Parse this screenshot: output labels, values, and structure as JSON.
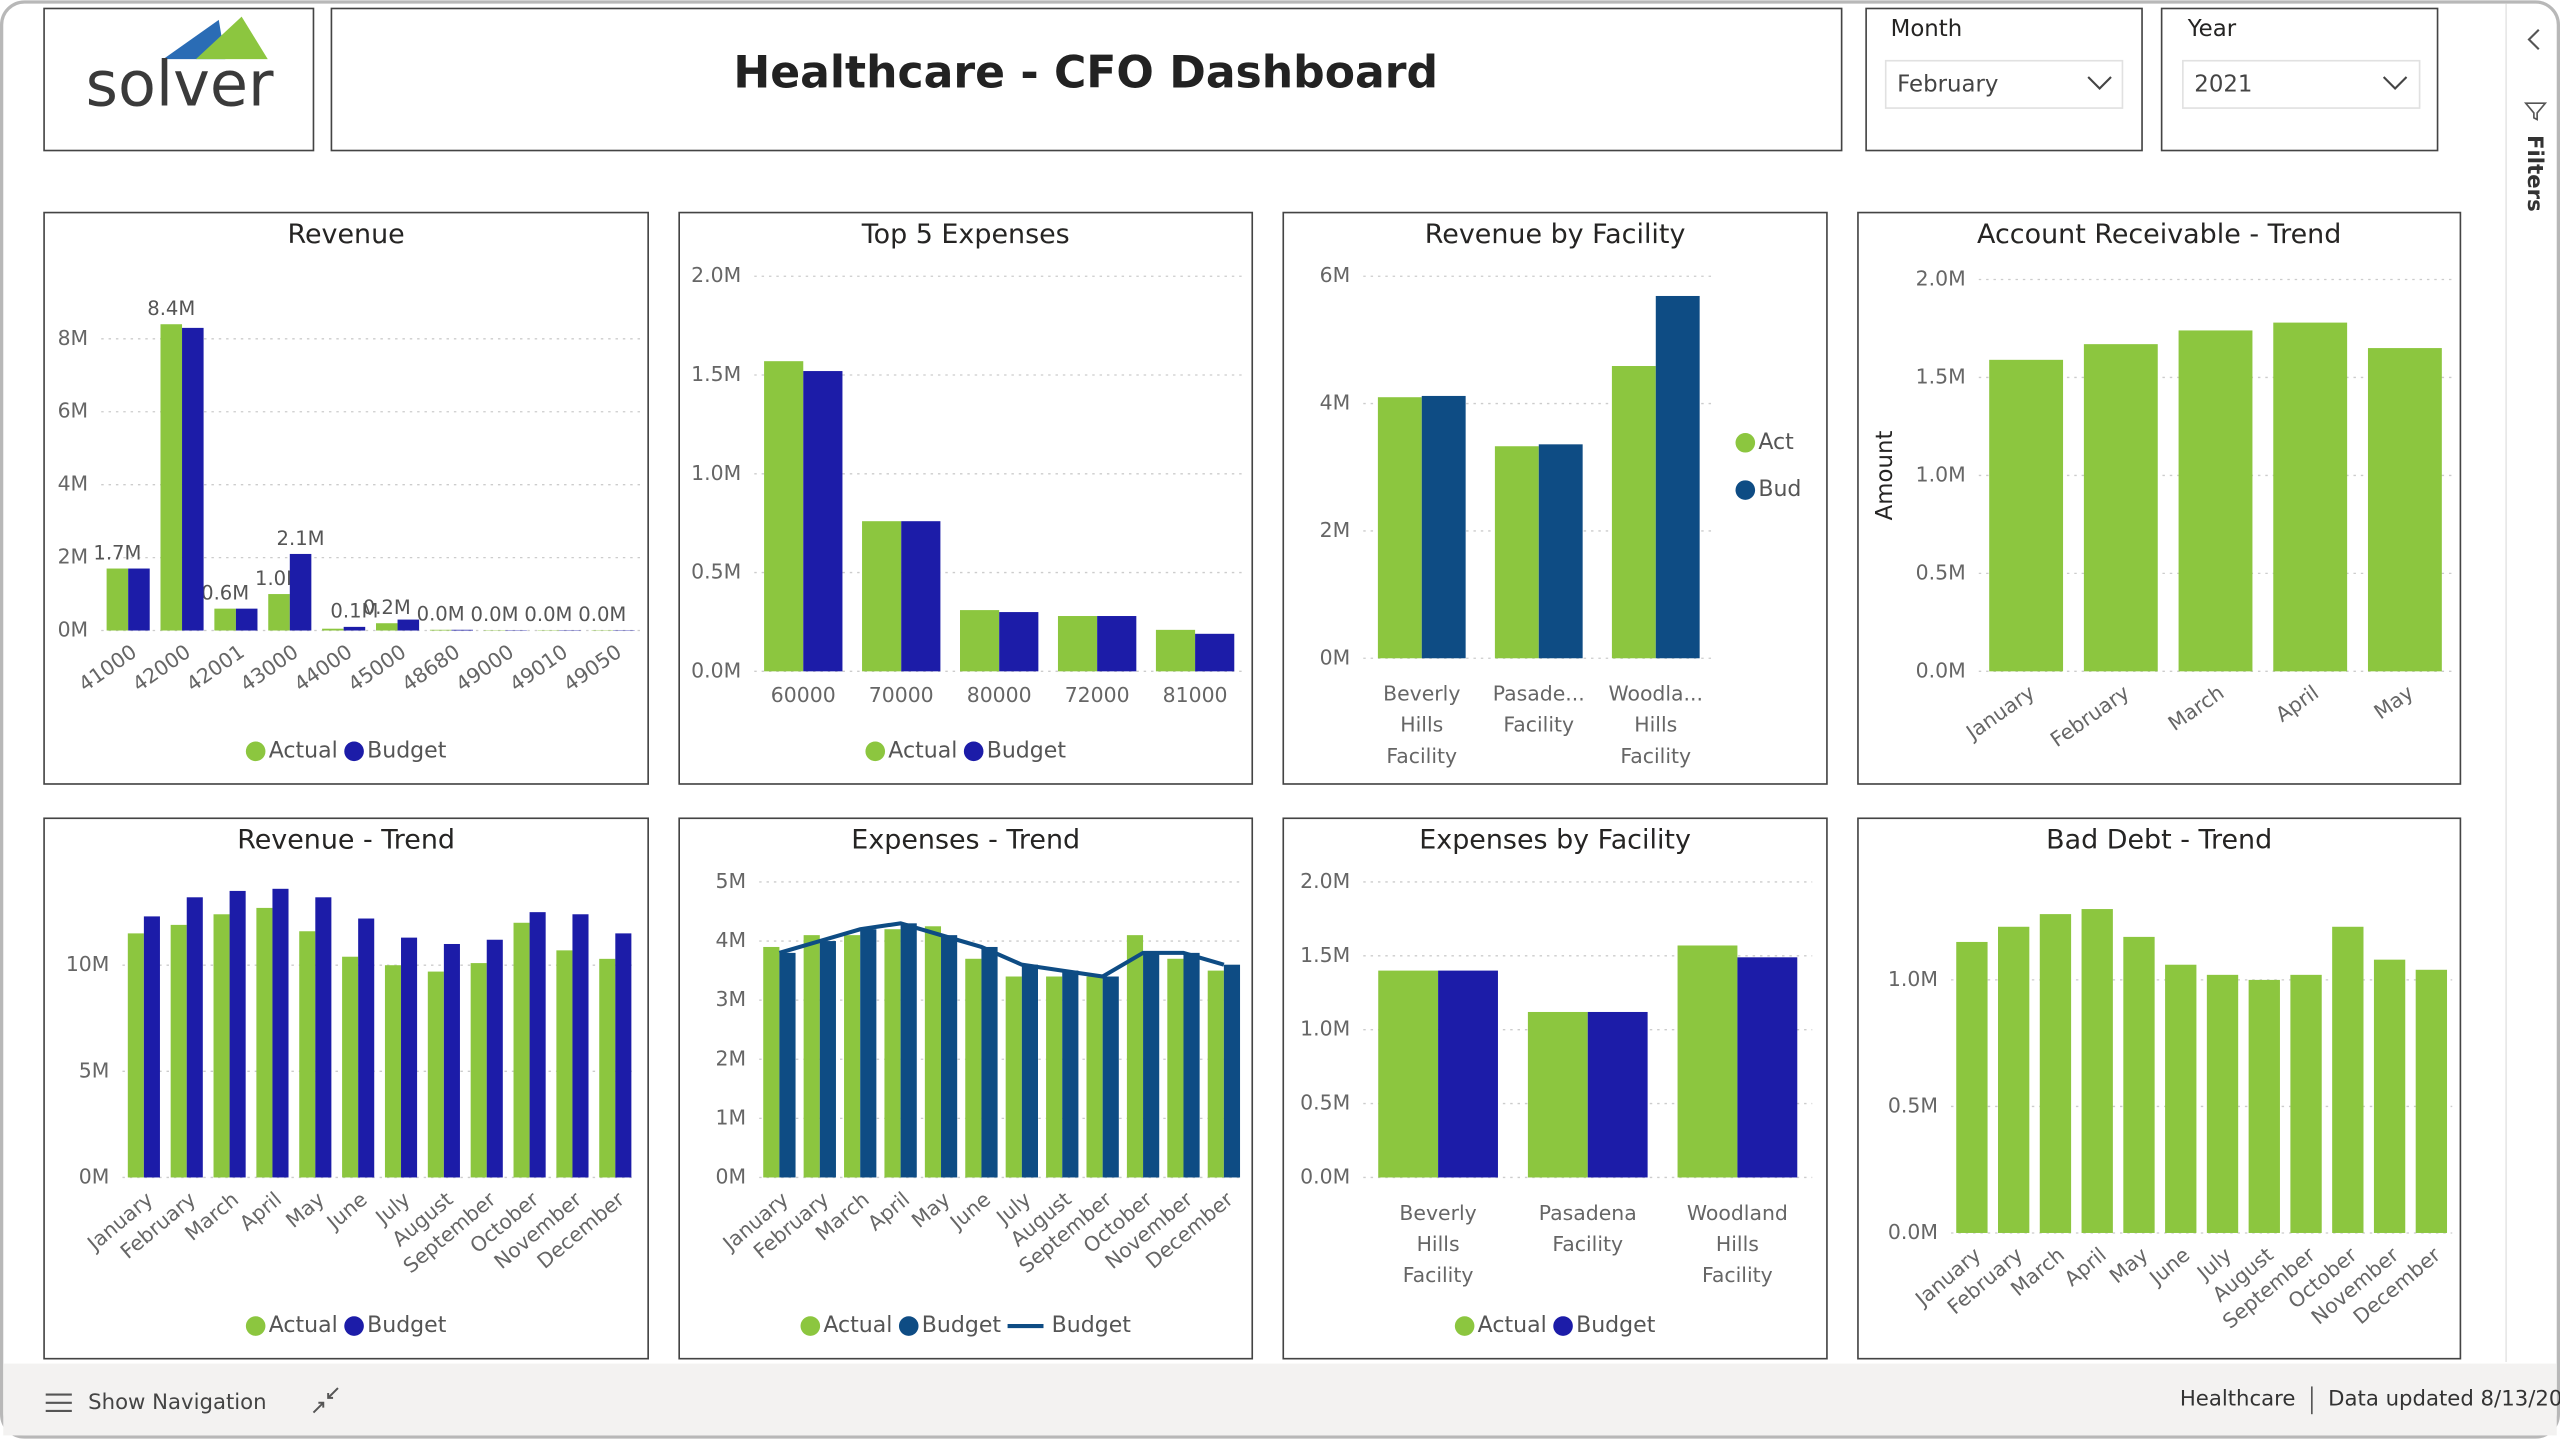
{
  "header": {
    "logo": "solver",
    "title": "Healthcare - CFO Dashboard"
  },
  "filters": [
    {
      "label": "Month",
      "value": "February"
    },
    {
      "label": "Year",
      "value": "2021"
    }
  ],
  "filters_pane": "Filters",
  "footer": {
    "navigation": "Show Navigation",
    "report": "Healthcare",
    "updated": "Data updated 8/13/20"
  },
  "chart_data": [
    {
      "type": "bar",
      "title": "Revenue",
      "categories": [
        "41000",
        "42000",
        "42001",
        "43000",
        "44000",
        "45000",
        "48680",
        "49000",
        "49010",
        "49050"
      ],
      "series": [
        {
          "name": "Actual",
          "color": "#8cc63f",
          "values": [
            1.7,
            8.4,
            0.6,
            1.0,
            0.05,
            0.2,
            0.02,
            0.01,
            0.01,
            0.01
          ],
          "value_labels": [
            "1.7M",
            "8.4M",
            "0.6M",
            "1.0M",
            null,
            "0.2M",
            "0.0M",
            "0.0M",
            "0.0M",
            "0.0M"
          ]
        },
        {
          "name": "Budget",
          "color": "#1c1ca8",
          "values": [
            1.7,
            8.3,
            0.6,
            2.1,
            0.1,
            0.3,
            0.02,
            0.01,
            0.01,
            0.01
          ],
          "value_labels": [
            null,
            null,
            null,
            "2.1M",
            "0.1M",
            null,
            null,
            null,
            null,
            null
          ]
        }
      ],
      "ylim": [
        0,
        9
      ],
      "yticks": [
        {
          "value": 0,
          "label": "0M"
        },
        {
          "value": 2,
          "label": "2M"
        },
        {
          "value": 4,
          "label": "4M"
        },
        {
          "value": 6,
          "label": "6M"
        },
        {
          "value": 8,
          "label": "8M"
        }
      ],
      "grid": true,
      "legend": "bottom"
    },
    {
      "type": "bar",
      "title": "Top 5 Expenses",
      "categories": [
        "60000",
        "70000",
        "80000",
        "72000",
        "81000"
      ],
      "series": [
        {
          "name": "Actual",
          "color": "#8cc63f",
          "values": [
            1.57,
            0.76,
            0.31,
            0.28,
            0.21
          ]
        },
        {
          "name": "Budget",
          "color": "#1c1ca8",
          "values": [
            1.52,
            0.76,
            0.3,
            0.28,
            0.19
          ]
        }
      ],
      "ylim": [
        0,
        2.0
      ],
      "yticks": [
        {
          "value": 0,
          "label": "0.0M"
        },
        {
          "value": 0.5,
          "label": "0.5M"
        },
        {
          "value": 1.0,
          "label": "1.0M"
        },
        {
          "value": 1.5,
          "label": "1.5M"
        },
        {
          "value": 2.0,
          "label": "2.0M"
        }
      ],
      "grid": true,
      "legend": "bottom"
    },
    {
      "type": "bar",
      "title": "Revenue by Facility",
      "categories": [
        "Beverly Hills Facility",
        "Pasade... Facility",
        "Woodla... Hills Facility"
      ],
      "series": [
        {
          "name": "Act",
          "color": "#8cc63f",
          "values": [
            4.1,
            3.33,
            4.59
          ]
        },
        {
          "name": "Bud",
          "color": "#0e4c84",
          "values": [
            4.12,
            3.36,
            5.69
          ]
        }
      ],
      "ylim": [
        0,
        6
      ],
      "yticks": [
        {
          "value": 0,
          "label": "0M"
        },
        {
          "value": 2,
          "label": "2M"
        },
        {
          "value": 4,
          "label": "4M"
        },
        {
          "value": 6,
          "label": "6M"
        }
      ],
      "grid": true,
      "legend": "right"
    },
    {
      "type": "bar",
      "title": "Account Receivable - Trend",
      "ylabel": "Amount",
      "categories": [
        "January",
        "February",
        "March",
        "April",
        "May"
      ],
      "values": [
        1.59,
        1.67,
        1.74,
        1.78,
        1.65
      ],
      "color": "#8cc63f",
      "ylim": [
        0,
        2.0
      ],
      "yticks": [
        {
          "value": 0,
          "label": "0.0M"
        },
        {
          "value": 0.5,
          "label": "0.5M"
        },
        {
          "value": 1.0,
          "label": "1.0M"
        },
        {
          "value": 1.5,
          "label": "1.5M"
        },
        {
          "value": 2.0,
          "label": "2.0M"
        }
      ],
      "grid": true
    },
    {
      "type": "bar",
      "title": "Revenue - Trend",
      "categories": [
        "January",
        "February",
        "March",
        "April",
        "May",
        "June",
        "July",
        "August",
        "September",
        "October",
        "November",
        "December"
      ],
      "series": [
        {
          "name": "Actual",
          "color": "#8cc63f",
          "values": [
            11.5,
            11.9,
            12.4,
            12.7,
            11.6,
            10.4,
            10.0,
            9.7,
            10.1,
            12.0,
            10.7,
            10.3
          ]
        },
        {
          "name": "Budget",
          "color": "#1c1ca8",
          "values": [
            12.3,
            13.2,
            13.5,
            13.6,
            13.2,
            12.2,
            11.3,
            11.0,
            11.2,
            12.5,
            12.4,
            11.5
          ]
        }
      ],
      "ylim": [
        0,
        14
      ],
      "yticks": [
        {
          "value": 0,
          "label": "0M"
        },
        {
          "value": 5,
          "label": "5M"
        },
        {
          "value": 10,
          "label": "10M"
        }
      ],
      "grid": true,
      "legend": "bottom"
    },
    {
      "type": "bar",
      "title": "Expenses - Trend",
      "categories": [
        "January",
        "February",
        "March",
        "April",
        "May",
        "June",
        "July",
        "August",
        "September",
        "October",
        "November",
        "December"
      ],
      "series": [
        {
          "name": "Actual",
          "type": "bar",
          "color": "#8cc63f",
          "values": [
            3.9,
            4.1,
            4.1,
            4.2,
            4.25,
            3.7,
            3.4,
            3.4,
            3.4,
            4.1,
            3.7,
            3.5
          ]
        },
        {
          "name": "Budget",
          "type": "bar",
          "color": "#0e4c84",
          "values": [
            3.8,
            4.0,
            4.2,
            4.3,
            4.1,
            3.9,
            3.6,
            3.5,
            3.4,
            3.8,
            3.8,
            3.6
          ]
        },
        {
          "name": "Budget",
          "type": "line",
          "color": "#0e4c84",
          "values": [
            3.8,
            4.0,
            4.2,
            4.3,
            4.1,
            3.9,
            3.6,
            3.5,
            3.4,
            3.8,
            3.8,
            3.6
          ]
        }
      ],
      "ylim": [
        0,
        5
      ],
      "yticks": [
        {
          "value": 0,
          "label": "0M"
        },
        {
          "value": 1,
          "label": "1M"
        },
        {
          "value": 2,
          "label": "2M"
        },
        {
          "value": 3,
          "label": "3M"
        },
        {
          "value": 4,
          "label": "4M"
        },
        {
          "value": 5,
          "label": "5M"
        }
      ],
      "grid": true,
      "legend": "bottom"
    },
    {
      "type": "bar",
      "title": "Expenses by Facility",
      "categories": [
        "Beverly Hills Facility",
        "Pasadena Facility",
        "Woodland Hills Facility"
      ],
      "series": [
        {
          "name": "Actual",
          "color": "#8cc63f",
          "values": [
            1.4,
            1.12,
            1.57
          ]
        },
        {
          "name": "Budget",
          "color": "#1c1ca8",
          "values": [
            1.4,
            1.12,
            1.49
          ]
        }
      ],
      "ylim": [
        0,
        2.0
      ],
      "yticks": [
        {
          "value": 0,
          "label": "0.0M"
        },
        {
          "value": 0.5,
          "label": "0.5M"
        },
        {
          "value": 1.0,
          "label": "1.0M"
        },
        {
          "value": 1.5,
          "label": "1.5M"
        },
        {
          "value": 2.0,
          "label": "2.0M"
        }
      ],
      "grid": true,
      "legend": "bottom"
    },
    {
      "type": "bar",
      "title": "Bad Debt - Trend",
      "categories": [
        "January",
        "February",
        "March",
        "April",
        "May",
        "June",
        "July",
        "August",
        "September",
        "October",
        "November",
        "December"
      ],
      "values": [
        1.15,
        1.21,
        1.26,
        1.28,
        1.17,
        1.06,
        1.02,
        1.0,
        1.02,
        1.21,
        1.08,
        1.04
      ],
      "color": "#8cc63f",
      "ylim": [
        0,
        1.4
      ],
      "yticks": [
        {
          "value": 0,
          "label": "0.0M"
        },
        {
          "value": 0.5,
          "label": "0.5M"
        },
        {
          "value": 1.0,
          "label": "1.0M"
        }
      ],
      "grid": true
    }
  ]
}
